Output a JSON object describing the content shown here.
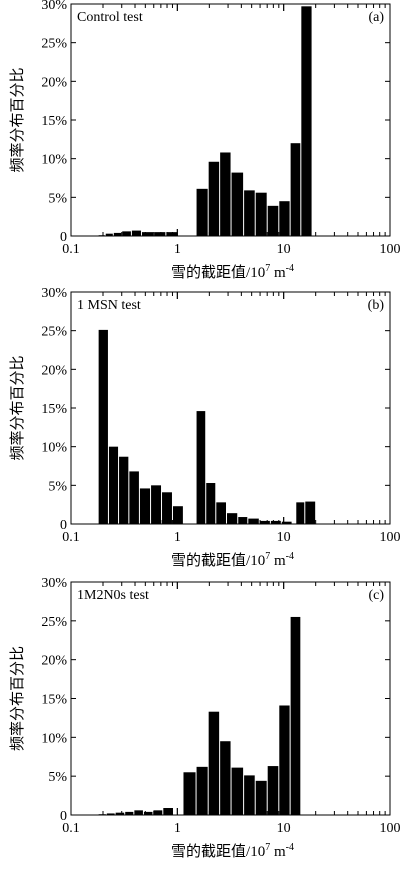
{
  "chart_data": [
    {
      "type": "bar",
      "panel_title": "Control test",
      "panel_tag": "(a)",
      "xscale": "log",
      "xlim": [
        0.1,
        100
      ],
      "ylim": [
        0,
        30
      ],
      "xticks": [
        "0.1",
        "1",
        "10",
        "100"
      ],
      "yticks": [
        "0",
        "5%",
        "10%",
        "15%",
        "20%",
        "25%",
        "30%"
      ],
      "ylabel": "频率分布百分比",
      "xlabel": {
        "main": "雪的截距值/10",
        "exp1": "7",
        "mid": " m",
        "exp2": "-4"
      },
      "bar_color": "#000000",
      "bars": [
        {
          "x0": 0.18,
          "x1": 0.21,
          "value": 0.1
        },
        {
          "x0": 0.21,
          "x1": 0.25,
          "value": 0.3
        },
        {
          "x0": 0.25,
          "x1": 0.3,
          "value": 0.4
        },
        {
          "x0": 0.3,
          "x1": 0.37,
          "value": 0.6
        },
        {
          "x0": 0.37,
          "x1": 0.46,
          "value": 0.7
        },
        {
          "x0": 0.46,
          "x1": 0.6,
          "value": 0.5
        },
        {
          "x0": 0.6,
          "x1": 0.78,
          "value": 0.5
        },
        {
          "x0": 0.78,
          "x1": 1.02,
          "value": 0.5
        },
        {
          "x0": 1.5,
          "x1": 1.95,
          "value": 6.1
        },
        {
          "x0": 1.95,
          "x1": 2.5,
          "value": 9.6
        },
        {
          "x0": 2.5,
          "x1": 3.2,
          "value": 10.8
        },
        {
          "x0": 3.2,
          "x1": 4.2,
          "value": 8.2
        },
        {
          "x0": 4.2,
          "x1": 5.4,
          "value": 5.9
        },
        {
          "x0": 5.4,
          "x1": 7.0,
          "value": 5.6
        },
        {
          "x0": 7.0,
          "x1": 9.0,
          "value": 3.9
        },
        {
          "x0": 9.0,
          "x1": 11.5,
          "value": 4.5
        },
        {
          "x0": 11.5,
          "x1": 14.5,
          "value": 12.0
        },
        {
          "x0": 14.5,
          "x1": 18.5,
          "value": 29.7
        }
      ]
    },
    {
      "type": "bar",
      "panel_title": "1 MSN test",
      "panel_tag": "(b)",
      "xscale": "log",
      "xlim": [
        0.1,
        100
      ],
      "ylim": [
        0,
        30
      ],
      "xticks": [
        "0.1",
        "1",
        "10",
        "100"
      ],
      "yticks": [
        "0",
        "5%",
        "10%",
        "15%",
        "20%",
        "25%",
        "30%"
      ],
      "ylabel": "频率分布百分比",
      "xlabel": {
        "main": "雪的截距值/10",
        "exp1": "7",
        "mid": " m",
        "exp2": "-4"
      },
      "bar_color": "#000000",
      "bars": [
        {
          "x0": 0.18,
          "x1": 0.225,
          "value": 25.1
        },
        {
          "x0": 0.225,
          "x1": 0.28,
          "value": 10.0
        },
        {
          "x0": 0.28,
          "x1": 0.35,
          "value": 8.7
        },
        {
          "x0": 0.35,
          "x1": 0.44,
          "value": 6.8
        },
        {
          "x0": 0.44,
          "x1": 0.56,
          "value": 4.6
        },
        {
          "x0": 0.56,
          "x1": 0.71,
          "value": 5.0
        },
        {
          "x0": 0.71,
          "x1": 0.9,
          "value": 4.1
        },
        {
          "x0": 0.9,
          "x1": 1.14,
          "value": 2.3
        },
        {
          "x0": 1.14,
          "x1": 1.5,
          "value": 0.0
        },
        {
          "x0": 1.5,
          "x1": 1.85,
          "value": 14.6
        },
        {
          "x0": 1.85,
          "x1": 2.3,
          "value": 5.3
        },
        {
          "x0": 2.3,
          "x1": 2.9,
          "value": 2.8
        },
        {
          "x0": 2.9,
          "x1": 3.7,
          "value": 1.4
        },
        {
          "x0": 3.7,
          "x1": 4.6,
          "value": 0.9
        },
        {
          "x0": 4.6,
          "x1": 5.9,
          "value": 0.7
        },
        {
          "x0": 5.9,
          "x1": 7.5,
          "value": 0.4
        },
        {
          "x0": 7.5,
          "x1": 9.5,
          "value": 0.4
        },
        {
          "x0": 9.5,
          "x1": 12.0,
          "value": 0.3
        },
        {
          "x0": 12.0,
          "x1": 13.0,
          "value": 0.0
        },
        {
          "x0": 13.0,
          "x1": 15.8,
          "value": 2.8
        },
        {
          "x0": 15.8,
          "x1": 20.0,
          "value": 2.9
        }
      ]
    },
    {
      "type": "bar",
      "panel_title": "1M2N0s test",
      "panel_tag": "(c)",
      "xscale": "log",
      "xlim": [
        0.1,
        100
      ],
      "ylim": [
        0,
        30
      ],
      "xticks": [
        "0.1",
        "1",
        "10",
        "100"
      ],
      "yticks": [
        "0",
        "5%",
        "10%",
        "15%",
        "20%",
        "25%",
        "30%"
      ],
      "ylabel": "频率分布百分比",
      "xlabel": {
        "main": "雪的截距值/10",
        "exp1": "7",
        "mid": " m",
        "exp2": "-4"
      },
      "bar_color": "#000000",
      "bars": [
        {
          "x0": 0.18,
          "x1": 0.215,
          "value": 0.1
        },
        {
          "x0": 0.215,
          "x1": 0.26,
          "value": 0.2
        },
        {
          "x0": 0.26,
          "x1": 0.32,
          "value": 0.3
        },
        {
          "x0": 0.32,
          "x1": 0.39,
          "value": 0.4
        },
        {
          "x0": 0.39,
          "x1": 0.48,
          "value": 0.6
        },
        {
          "x0": 0.48,
          "x1": 0.59,
          "value": 0.4
        },
        {
          "x0": 0.59,
          "x1": 0.73,
          "value": 0.6
        },
        {
          "x0": 0.73,
          "x1": 0.92,
          "value": 0.9
        },
        {
          "x0": 1.13,
          "x1": 1.5,
          "value": 5.5
        },
        {
          "x0": 1.5,
          "x1": 1.95,
          "value": 6.2
        },
        {
          "x0": 1.95,
          "x1": 2.5,
          "value": 13.3
        },
        {
          "x0": 2.5,
          "x1": 3.2,
          "value": 9.5
        },
        {
          "x0": 3.2,
          "x1": 4.2,
          "value": 6.1
        },
        {
          "x0": 4.2,
          "x1": 5.4,
          "value": 5.1
        },
        {
          "x0": 5.4,
          "x1": 7.0,
          "value": 4.4
        },
        {
          "x0": 7.0,
          "x1": 9.0,
          "value": 6.3
        },
        {
          "x0": 9.0,
          "x1": 11.5,
          "value": 14.1
        },
        {
          "x0": 11.5,
          "x1": 14.5,
          "value": 25.5
        }
      ]
    }
  ]
}
